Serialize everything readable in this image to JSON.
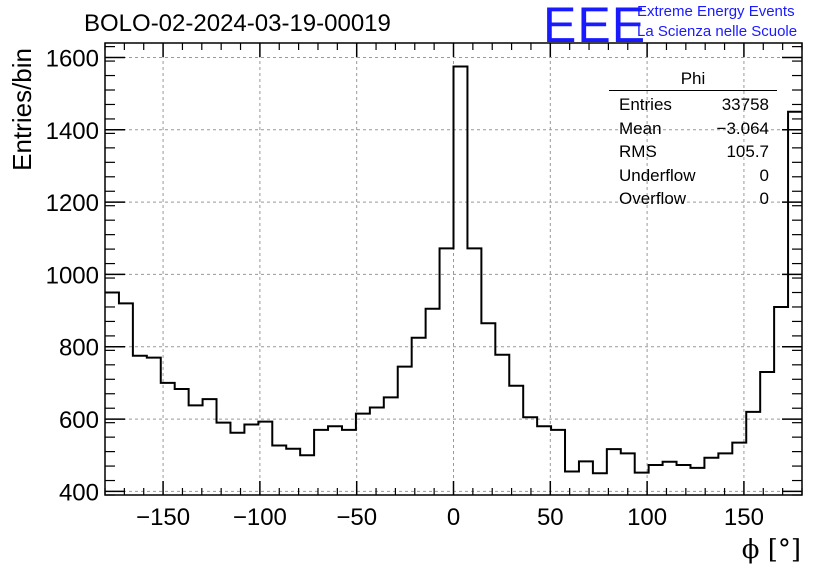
{
  "header": {
    "title": "BOLO-02-2024-03-19-00019",
    "logo_text": "EEE",
    "logo_line1": "Extreme Energy Events",
    "logo_line2": "La Scienza nelle Scuole"
  },
  "stats": {
    "name": "Phi",
    "rows": [
      {
        "label": "Entries",
        "value": "33758"
      },
      {
        "label": "Mean",
        "value": "−3.064"
      },
      {
        "label": "RMS",
        "value": "105.7"
      },
      {
        "label": "Underflow",
        "value": "0"
      },
      {
        "label": "Overflow",
        "value": "0"
      }
    ]
  },
  "chart_data": {
    "type": "histogram",
    "title": "BOLO-02-2024-03-19-00019",
    "xlabel": "ϕ [°]",
    "ylabel": "Entries/bin",
    "xlim": [
      -180,
      180
    ],
    "ylim": [
      390,
      1640
    ],
    "bin_width": 7.2,
    "bin_edges_start": -180,
    "values": [
      950,
      920,
      775,
      770,
      700,
      683,
      638,
      655,
      590,
      562,
      585,
      593,
      527,
      518,
      500,
      570,
      580,
      570,
      615,
      632,
      660,
      745,
      825,
      905,
      1072,
      1575,
      1072,
      865,
      778,
      692,
      605,
      580,
      570,
      455,
      483,
      450,
      517,
      505,
      452,
      473,
      482,
      473,
      465,
      493,
      505,
      535,
      620,
      730,
      910,
      1450
    ],
    "x_ticks": [
      -150,
      -100,
      -50,
      0,
      50,
      100,
      150
    ],
    "x_tick_labels": [
      "−150",
      "−100",
      "−50",
      "0",
      "50",
      "100",
      "150"
    ],
    "y_ticks": [
      400,
      600,
      800,
      1000,
      1200,
      1400,
      1600
    ],
    "y_tick_labels": [
      "400",
      "600",
      "800",
      "1000",
      "1200",
      "1400",
      "1600"
    ],
    "grid": true,
    "line_color": "#000000",
    "grid_color": "#999999"
  }
}
